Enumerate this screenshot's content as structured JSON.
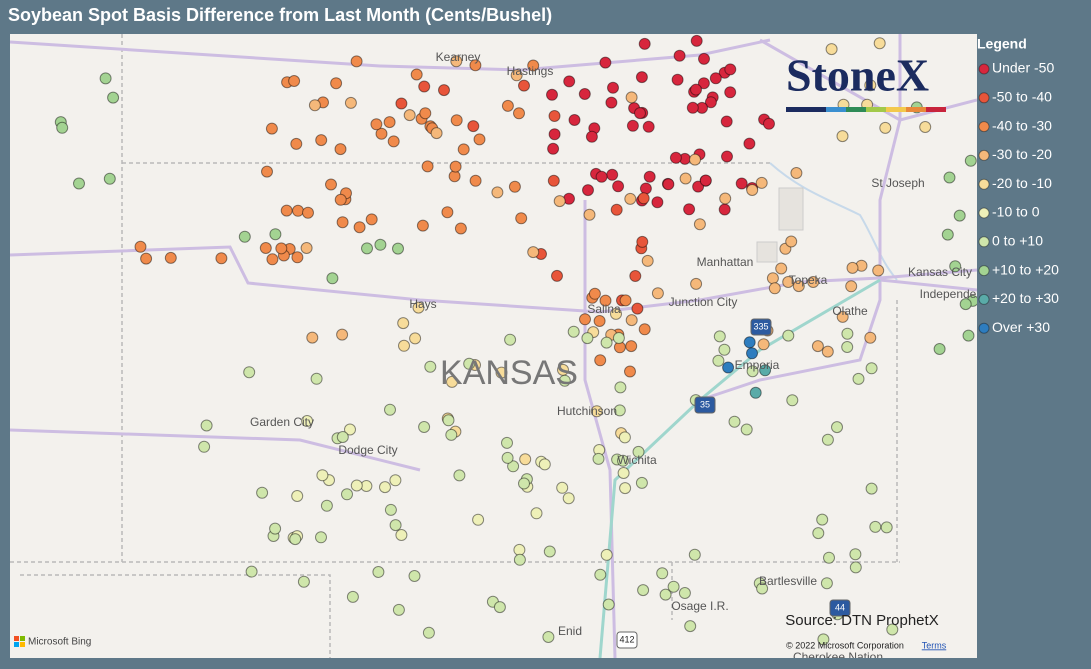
{
  "title": "Soybean Spot Basis Difference from Last Month (Cents/Bushel)",
  "legend": {
    "title": "Legend",
    "items": [
      {
        "label": "Under -50",
        "color": "#d7263d"
      },
      {
        "label": "-50 to -40",
        "color": "#e8553a"
      },
      {
        "label": "-40 to -30",
        "color": "#f08a4b"
      },
      {
        "label": "-30 to -20",
        "color": "#f5b87a"
      },
      {
        "label": "-20 to -10",
        "color": "#f7dc9a"
      },
      {
        "label": "-10 to 0",
        "color": "#eef0b8"
      },
      {
        "label": "0 to +10",
        "color": "#cfe6ab"
      },
      {
        "label": "+10 to +20",
        "color": "#a3d392"
      },
      {
        "label": "+20 to +30",
        "color": "#5aaba8"
      },
      {
        "label": "Over +30",
        "color": "#2e7dbf"
      }
    ]
  },
  "map": {
    "state_label": "KANSAS",
    "places": [
      "Kearney",
      "Hastings",
      "Hays",
      "Salina",
      "Junction City",
      "Manhattan",
      "Topeka",
      "St Joseph",
      "Kansas City",
      "Independe",
      "Olathe",
      "Emporia",
      "Garden City",
      "Dodge City",
      "Hutchinson",
      "Wichita",
      "Bartlesville",
      "Osage I.R.",
      "Enid",
      "Cherokee Nation"
    ],
    "highways": [
      "335",
      "35",
      "44",
      "412"
    ]
  },
  "logo": "StoneX",
  "source": "Source: DTN ProphetX",
  "copyright": "© 2022 Microsoft Corporation",
  "terms": "Terms",
  "attribution": "Microsoft Bing"
}
